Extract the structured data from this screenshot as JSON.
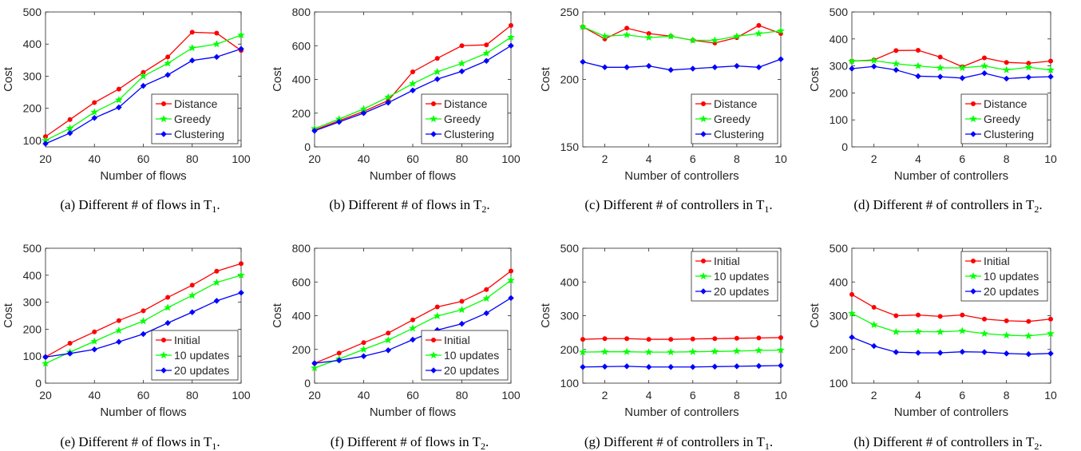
{
  "colors": {
    "red": "#ff0000",
    "green": "#00ff00",
    "blue": "#0000ff",
    "axis": "#262626"
  },
  "chart_data": [
    {
      "type": "line",
      "caption": "(a) Different # of flows in T",
      "caption_sub": "1",
      "caption_end": ".",
      "xlabel": "Number of flows",
      "ylabel": "Cost",
      "xlim": [
        20,
        100
      ],
      "ylim": [
        80,
        500
      ],
      "xticks": [
        20,
        40,
        60,
        80,
        100
      ],
      "yticks": [
        100,
        200,
        300,
        400,
        500
      ],
      "x": [
        20,
        30,
        40,
        50,
        60,
        70,
        80,
        90,
        100
      ],
      "legend": "bottom-right",
      "series": [
        {
          "name": "Distance",
          "color": "#ff0000",
          "marker": "dot",
          "values": [
            112,
            165,
            218,
            260,
            312,
            360,
            437,
            434,
            380
          ]
        },
        {
          "name": "Greedy",
          "color": "#00ff00",
          "marker": "star",
          "values": [
            100,
            138,
            188,
            226,
            300,
            340,
            388,
            400,
            428
          ]
        },
        {
          "name": "Clustering",
          "color": "#0000ff",
          "marker": "diamond",
          "values": [
            90,
            123,
            170,
            203,
            270,
            304,
            349,
            360,
            385
          ]
        }
      ]
    },
    {
      "type": "line",
      "caption": "(b) Different # of flows in T",
      "caption_sub": "2",
      "caption_end": ".",
      "xlabel": "Number of flows",
      "ylabel": "Cost",
      "xlim": [
        20,
        100
      ],
      "ylim": [
        0,
        800
      ],
      "xticks": [
        20,
        40,
        60,
        80,
        100
      ],
      "yticks": [
        0,
        200,
        400,
        600,
        800
      ],
      "x": [
        20,
        30,
        40,
        50,
        60,
        70,
        80,
        90,
        100
      ],
      "legend": "bottom-right",
      "series": [
        {
          "name": "Distance",
          "color": "#ff0000",
          "marker": "dot",
          "values": [
            100,
            155,
            210,
            275,
            445,
            525,
            600,
            605,
            720
          ]
        },
        {
          "name": "Greedy",
          "color": "#00ff00",
          "marker": "star",
          "values": [
            108,
            165,
            225,
            295,
            375,
            445,
            495,
            555,
            650
          ]
        },
        {
          "name": "Clustering",
          "color": "#0000ff",
          "marker": "diamond",
          "values": [
            95,
            148,
            200,
            262,
            335,
            402,
            448,
            510,
            600
          ]
        }
      ]
    },
    {
      "type": "line",
      "caption": "(c) Different # of controllers in T",
      "caption_sub": "1",
      "caption_end": ".",
      "xlabel": "Number of controllers",
      "ylabel": "Cost",
      "xlim": [
        1,
        10
      ],
      "ylim": [
        150,
        250
      ],
      "xticks": [
        2,
        4,
        6,
        8,
        10
      ],
      "yticks": [
        150,
        200,
        250
      ],
      "x": [
        1,
        2,
        3,
        4,
        5,
        6,
        7,
        8,
        9,
        10
      ],
      "legend": "bottom-right",
      "series": [
        {
          "name": "Distance",
          "color": "#ff0000",
          "marker": "dot",
          "values": [
            239,
            230,
            238,
            234,
            232,
            229,
            227,
            231,
            240,
            234
          ]
        },
        {
          "name": "Greedy",
          "color": "#00ff00",
          "marker": "star",
          "values": [
            239,
            232,
            233,
            231,
            232,
            229,
            229,
            232,
            234,
            236
          ]
        },
        {
          "name": "Clustering",
          "color": "#0000ff",
          "marker": "diamond",
          "values": [
            213,
            209,
            209,
            210,
            207,
            208,
            209,
            210,
            209,
            215
          ]
        }
      ]
    },
    {
      "type": "line",
      "caption": "(d) Different # of controllers in T",
      "caption_sub": "2",
      "caption_end": ".",
      "xlabel": "Number of controllers",
      "ylabel": "Cost",
      "xlim": [
        1,
        10
      ],
      "ylim": [
        0,
        500
      ],
      "xticks": [
        2,
        4,
        6,
        8,
        10
      ],
      "yticks": [
        0,
        100,
        200,
        300,
        400,
        500
      ],
      "x": [
        1,
        2,
        3,
        4,
        5,
        6,
        7,
        8,
        9,
        10
      ],
      "legend": "bottom-right",
      "series": [
        {
          "name": "Distance",
          "color": "#ff0000",
          "marker": "dot",
          "values": [
            318,
            322,
            357,
            358,
            333,
            297,
            330,
            313,
            310,
            318
          ]
        },
        {
          "name": "Greedy",
          "color": "#00ff00",
          "marker": "star",
          "values": [
            318,
            320,
            308,
            300,
            293,
            293,
            300,
            285,
            295,
            285
          ]
        },
        {
          "name": "Clustering",
          "color": "#0000ff",
          "marker": "diamond",
          "values": [
            290,
            298,
            285,
            262,
            260,
            255,
            273,
            253,
            258,
            260
          ]
        }
      ]
    },
    {
      "type": "line",
      "caption": "(e) Different # of flows in T",
      "caption_sub": "1",
      "caption_end": ".",
      "xlabel": "Number of flows",
      "ylabel": "Cost",
      "xlim": [
        20,
        100
      ],
      "ylim": [
        0,
        500
      ],
      "xticks": [
        20,
        40,
        60,
        80,
        100
      ],
      "yticks": [
        0,
        100,
        200,
        300,
        400,
        500
      ],
      "x": [
        20,
        30,
        40,
        50,
        60,
        70,
        80,
        90,
        100
      ],
      "legend": "bottom-right",
      "series": [
        {
          "name": "Initial",
          "color": "#ff0000",
          "marker": "dot",
          "values": [
            97,
            148,
            190,
            232,
            268,
            318,
            363,
            415,
            443
          ]
        },
        {
          "name": "10 updates",
          "color": "#00ff00",
          "marker": "star",
          "values": [
            73,
            115,
            155,
            195,
            230,
            280,
            325,
            373,
            400
          ]
        },
        {
          "name": "20 updates",
          "color": "#0000ff",
          "marker": "diamond",
          "values": [
            97,
            110,
            125,
            153,
            182,
            223,
            263,
            305,
            335
          ]
        }
      ]
    },
    {
      "type": "line",
      "caption": "(f) Different # of flows in T",
      "caption_sub": "2",
      "caption_end": ".",
      "xlabel": "Number of flows",
      "ylabel": "Cost",
      "xlim": [
        20,
        100
      ],
      "ylim": [
        0,
        800
      ],
      "xticks": [
        20,
        40,
        60,
        80,
        100
      ],
      "yticks": [
        0,
        200,
        400,
        600,
        800
      ],
      "x": [
        20,
        30,
        40,
        50,
        60,
        70,
        80,
        90,
        100
      ],
      "legend": "bottom-right",
      "series": [
        {
          "name": "Initial",
          "color": "#ff0000",
          "marker": "dot",
          "values": [
            118,
            178,
            240,
            297,
            375,
            452,
            485,
            555,
            665
          ]
        },
        {
          "name": "10 updates",
          "color": "#00ff00",
          "marker": "star",
          "values": [
            90,
            143,
            200,
            255,
            325,
            398,
            435,
            502,
            610
          ]
        },
        {
          "name": "20 updates",
          "color": "#0000ff",
          "marker": "diamond",
          "values": [
            118,
            135,
            160,
            195,
            258,
            315,
            352,
            415,
            505
          ]
        }
      ]
    },
    {
      "type": "line",
      "caption": "(g) Different # of controllers in T",
      "caption_sub": "1",
      "caption_end": ".",
      "xlabel": "Number of controllers",
      "ylabel": "Cost",
      "xlim": [
        1,
        10
      ],
      "ylim": [
        100,
        500
      ],
      "xticks": [
        2,
        4,
        6,
        8,
        10
      ],
      "yticks": [
        100,
        200,
        300,
        400,
        500
      ],
      "x": [
        1,
        2,
        3,
        4,
        5,
        6,
        7,
        8,
        9,
        10
      ],
      "legend": "top-right",
      "series": [
        {
          "name": "Initial",
          "color": "#ff0000",
          "marker": "dot",
          "values": [
            230,
            232,
            232,
            230,
            230,
            231,
            232,
            233,
            234,
            235
          ]
        },
        {
          "name": "10 updates",
          "color": "#00ff00",
          "marker": "star",
          "values": [
            192,
            193,
            193,
            192,
            192,
            193,
            194,
            195,
            197,
            198
          ]
        },
        {
          "name": "20 updates",
          "color": "#0000ff",
          "marker": "diamond",
          "values": [
            148,
            149,
            150,
            148,
            148,
            148,
            149,
            150,
            151,
            152
          ]
        }
      ]
    },
    {
      "type": "line",
      "caption": "(h) Different # of controllers in T",
      "caption_sub": "2",
      "caption_end": ".",
      "xlabel": "Number of controllers",
      "ylabel": "Cost",
      "xlim": [
        1,
        10
      ],
      "ylim": [
        100,
        500
      ],
      "xticks": [
        2,
        4,
        6,
        8,
        10
      ],
      "yticks": [
        100,
        200,
        300,
        400,
        500
      ],
      "x": [
        1,
        2,
        3,
        4,
        5,
        6,
        7,
        8,
        9,
        10
      ],
      "legend": "top-right",
      "series": [
        {
          "name": "Initial",
          "color": "#ff0000",
          "marker": "dot",
          "values": [
            363,
            325,
            300,
            302,
            298,
            302,
            290,
            285,
            283,
            290
          ]
        },
        {
          "name": "10 updates",
          "color": "#00ff00",
          "marker": "star",
          "values": [
            307,
            273,
            252,
            253,
            252,
            255,
            247,
            242,
            240,
            247
          ]
        },
        {
          "name": "20 updates",
          "color": "#0000ff",
          "marker": "diamond",
          "values": [
            236,
            210,
            192,
            190,
            190,
            193,
            192,
            188,
            186,
            188
          ]
        }
      ]
    }
  ]
}
